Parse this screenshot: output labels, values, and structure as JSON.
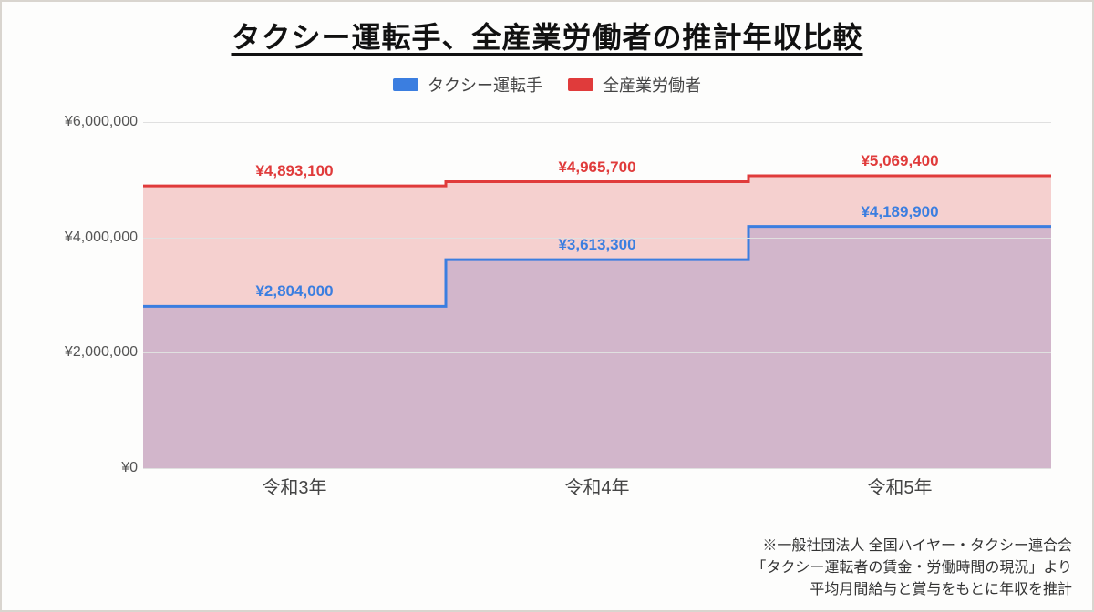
{
  "title": "タクシー運転手、全産業労働者の推計年収比較",
  "legend": [
    {
      "label": "タクシー運転手",
      "color": "#3b7ee0"
    },
    {
      "label": "全産業労働者",
      "color": "#e03b3b"
    }
  ],
  "chart": {
    "type": "stepped-area",
    "background_color": "#fdfdfc",
    "grid_color": "#e0e0e0",
    "y_axis": {
      "min": 0,
      "max": 6000000,
      "ticks": [
        0,
        2000000,
        4000000,
        6000000
      ],
      "tick_labels": [
        "¥0",
        "¥2,000,000",
        "¥4,000,000",
        "¥6,000,000"
      ],
      "tick_fontsize": 16,
      "tick_color": "#555555"
    },
    "x_axis": {
      "categories": [
        "令和3年",
        "令和4年",
        "令和5年"
      ],
      "tick_fontsize": 20,
      "tick_color": "#444444"
    },
    "series": [
      {
        "name": "全産業労働者",
        "values": [
          4893100,
          4965700,
          5069400
        ],
        "value_labels": [
          "¥4,893,100",
          "¥4,965,700",
          "¥5,069,400"
        ],
        "line_color": "#e03b3b",
        "fill_color": "#f2c0c0",
        "fill_opacity": 0.75,
        "line_width": 3,
        "label_color": "#e03b3b"
      },
      {
        "name": "タクシー運転手",
        "values": [
          2804000,
          3613300,
          4189900
        ],
        "value_labels": [
          "¥2,804,000",
          "¥3,613,300",
          "¥4,189,900"
        ],
        "line_color": "#3b7ee0",
        "fill_color": "#b4a0c8",
        "fill_opacity": 0.55,
        "line_width": 3,
        "label_color": "#3b7ee0"
      }
    ]
  },
  "footnote": {
    "line1": "※一般社団法人 全国ハイヤー・タクシー連合会",
    "line2": "「タクシー運転者の賃金・労働時間の現況」より",
    "line3": "平均月間給与と賞与をもとに年収を推計"
  }
}
